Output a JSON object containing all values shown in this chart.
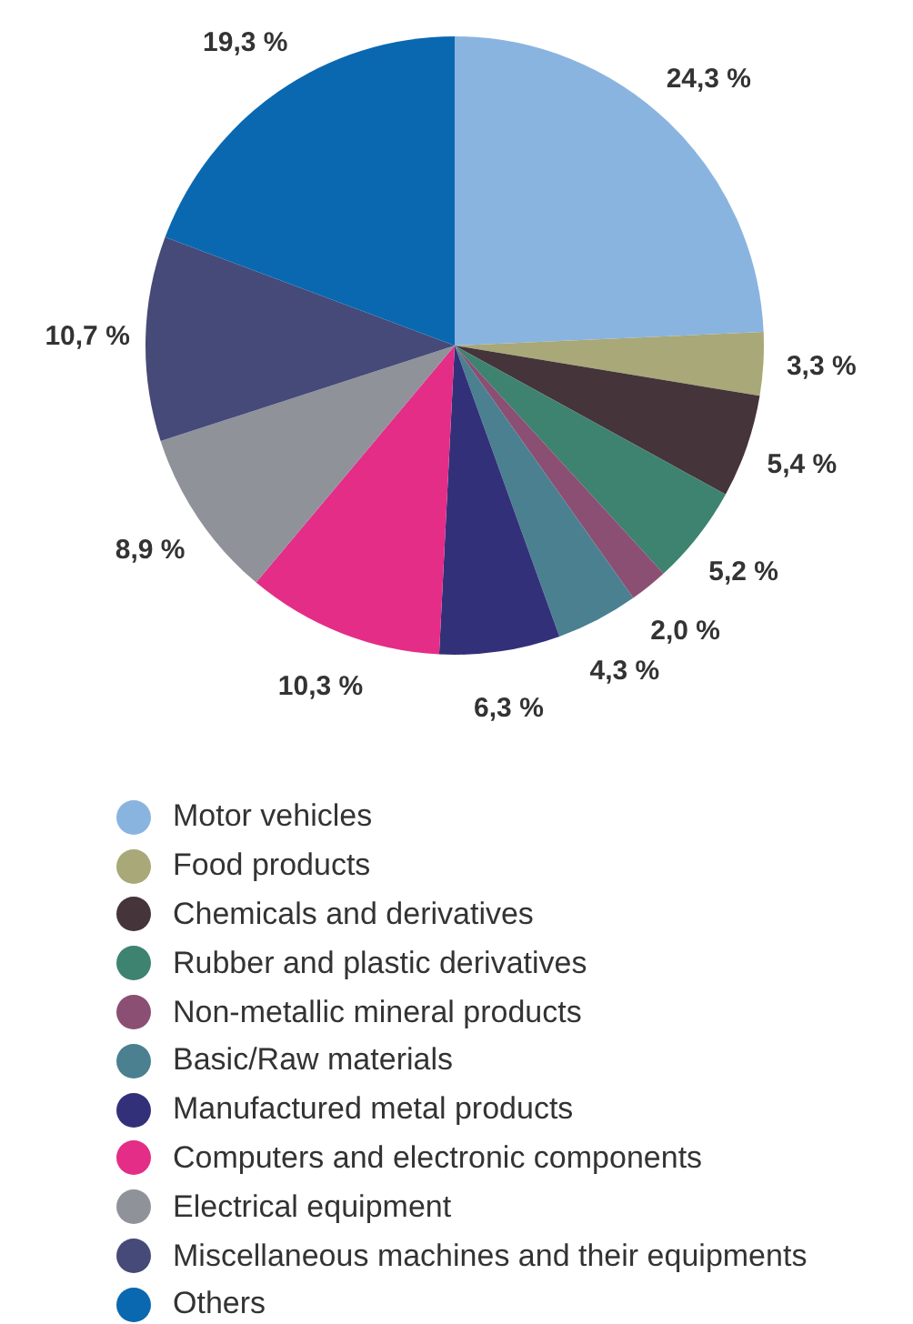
{
  "chart_data": {
    "type": "pie",
    "categories": [
      "Motor vehicles",
      "Food products",
      "Chemicals and derivatives",
      "Rubber and plastic derivatives",
      "Non-metallic mineral products",
      "Basic/Raw materials",
      "Manufactured metal products",
      "Computers and electronic components",
      "Electrical equipment",
      "Miscellaneous machines and their equipments",
      "Others"
    ],
    "values": [
      24.3,
      3.3,
      5.4,
      5.2,
      2.0,
      4.3,
      6.3,
      10.3,
      8.9,
      10.7,
      19.3
    ],
    "value_labels": [
      "24,3 %",
      "3,3 %",
      "5,4 %",
      "5,2 %",
      "2,0 %",
      "4,3 %",
      "6,3 %",
      "10,3 %",
      "8,9 %",
      "10,7 %",
      "19,3 %"
    ],
    "colors": [
      "#8ab4e0",
      "#a8a878",
      "#45343a",
      "#3e8270",
      "#8a4f72",
      "#4a8090",
      "#33307a",
      "#e42d87",
      "#8f9299",
      "#464a78",
      "#0a68b0"
    ],
    "legend": "bottom"
  }
}
